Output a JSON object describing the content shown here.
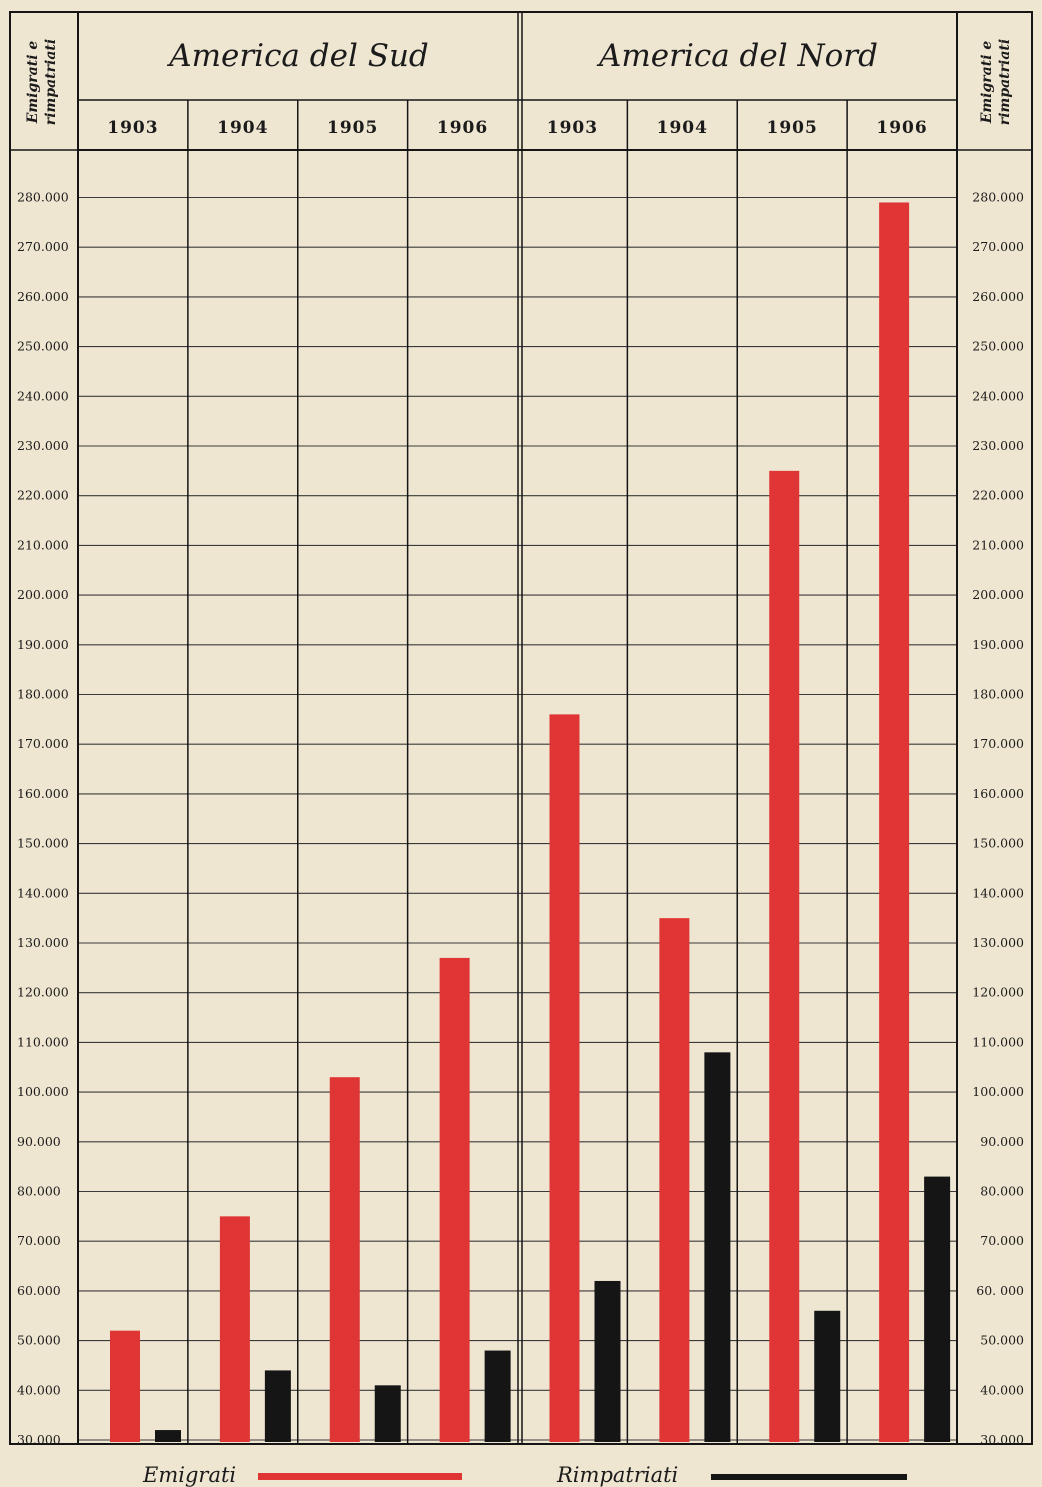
{
  "chart_data": {
    "type": "bar",
    "axis_label": "Emigrati e rimpatriati",
    "ylim": [
      30000,
      285000
    ],
    "ticks": [
      30000,
      40000,
      50000,
      60000,
      70000,
      80000,
      90000,
      100000,
      110000,
      120000,
      130000,
      140000,
      150000,
      160000,
      170000,
      180000,
      190000,
      200000,
      210000,
      220000,
      230000,
      240000,
      250000,
      260000,
      270000,
      280000
    ],
    "tick_labels_left": [
      "30.000",
      "40.000",
      "50.000",
      "60.000",
      "70.000",
      "80.000",
      "90.000",
      "100.000",
      "110.000",
      "120.000",
      "130.000",
      "140.000",
      "150.000",
      "160.000",
      "170.000",
      "180.000",
      "190.000",
      "200.000",
      "210.000",
      "220.000",
      "230.000",
      "240.000",
      "250.000",
      "260.000",
      "270.000",
      "280.000"
    ],
    "tick_labels_right": [
      "30.000",
      "40.000",
      "50.000",
      "60. 000",
      "70.000",
      "80.000",
      "90.000",
      "100.000",
      "110.000",
      "120.000",
      "130.000",
      "140.000",
      "150.000",
      "160.000",
      "170.000",
      "180.000",
      "190.000",
      "200.000",
      "210.000",
      "220.000",
      "230.000",
      "240.000",
      "250.000",
      "260.000",
      "270.000",
      "280.000"
    ],
    "groups": [
      {
        "name": "America del Sud",
        "categories": [
          "1903",
          "1904",
          "1905",
          "1906"
        ]
      },
      {
        "name": "America del Nord",
        "categories": [
          "1903",
          "1904",
          "1905",
          "1906"
        ]
      }
    ],
    "series": [
      {
        "name": "Emigrati",
        "color": "#e03535",
        "values": [
          52000,
          75000,
          103000,
          127000,
          176000,
          135000,
          225000,
          279000
        ]
      },
      {
        "name": "Rimpatriati",
        "color": "#151515",
        "values": [
          32000,
          44000,
          41000,
          48000,
          62000,
          108000,
          56000,
          83000
        ]
      }
    ],
    "grid": true,
    "legend_position": "bottom"
  },
  "legend": {
    "emigrati_label": "Emigrati",
    "rimpatriati_label": "Rimpatriati"
  },
  "colors": {
    "paper": "#efe6d2",
    "ink": "#151515",
    "grid": "#3a3a3a",
    "emigrati": "#e03535",
    "rimpatriati": "#151515"
  }
}
